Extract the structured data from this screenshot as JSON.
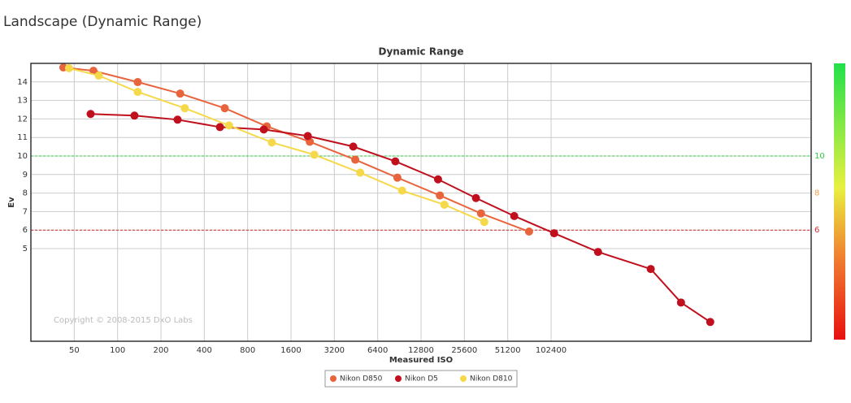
{
  "page_title": "Landscape (Dynamic Range)",
  "chart_data": {
    "type": "line",
    "title": "Dynamic Range",
    "x_label": "Measured ISO",
    "y_label": "Ev",
    "annotation": "Copyright © 2008-2015 DxO Labs",
    "xscale": "log",
    "grid": true,
    "xlim": [
      25,
      6553600
    ],
    "xticks": [
      50,
      100,
      200,
      400,
      800,
      1600,
      3200,
      6400,
      12800,
      25600,
      51200,
      102400
    ],
    "ylim": [
      0,
      15
    ],
    "yticks": [
      5,
      6,
      7,
      8,
      9,
      10,
      11,
      12,
      13,
      14
    ],
    "reference_lines": [
      {
        "value": 10,
        "color": "#2ecc40",
        "dashed": true
      },
      {
        "value": 8,
        "color": "#f0a050",
        "dashed": false
      },
      {
        "value": 6,
        "color": "#d03030",
        "dashed": true
      }
    ],
    "legend": "bottom",
    "series": [
      {
        "name": "Nikon D850",
        "color": "#e8643c",
        "x": [
          42,
          68,
          138,
          272,
          555,
          1087,
          2161,
          4472,
          8768,
          17300,
          33400,
          72000
        ],
        "values": [
          14.78,
          14.6,
          13.99,
          13.37,
          12.58,
          11.6,
          10.77,
          9.8,
          8.83,
          7.87,
          6.9,
          5.92
        ]
      },
      {
        "name": "Nikon D5",
        "color": "#c0101e",
        "x": [
          65,
          131,
          261,
          514,
          1036,
          2092,
          4330,
          8490,
          16800,
          30800,
          56800,
          107500,
          217000,
          504000,
          817500,
          1305000
        ],
        "values": [
          12.27,
          12.18,
          11.96,
          11.56,
          11.43,
          11.08,
          10.51,
          9.71,
          8.74,
          7.73,
          6.76,
          5.83,
          4.82,
          3.9,
          2.09,
          1.04
        ]
      },
      {
        "name": "Nikon D810",
        "color": "#f5d94a",
        "x": [
          46,
          74,
          138,
          293,
          594,
          1178,
          2323,
          4840,
          9460,
          18600,
          35200
        ],
        "values": [
          14.74,
          14.34,
          13.46,
          12.58,
          11.65,
          10.73,
          10.07,
          9.1,
          8.13,
          7.37,
          6.44
        ]
      }
    ]
  }
}
